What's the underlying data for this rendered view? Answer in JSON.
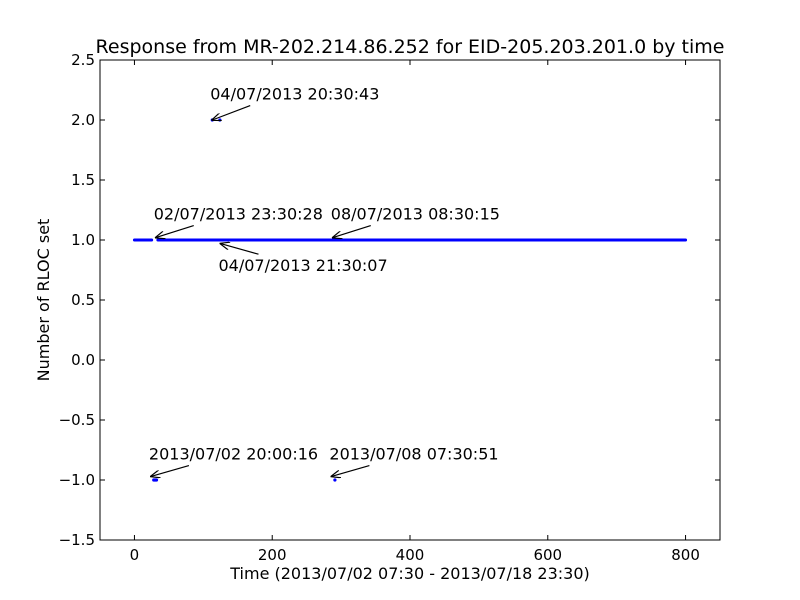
{
  "chart_data": {
    "type": "scatter",
    "title": "Response from MR-202.214.86.252 for EID-205.203.201.0 by time",
    "xlabel": "Time (2013/07/02 07:30 - 2013/07/18 23:30)",
    "ylabel": "Number of RLOC set",
    "xlim": [
      -50,
      850
    ],
    "ylim": [
      -1.5,
      2.5
    ],
    "x_ticks": [
      0,
      200,
      400,
      600,
      800
    ],
    "y_ticks": [
      -1.5,
      -1.0,
      -0.5,
      0.0,
      0.5,
      1.0,
      1.5,
      2.0,
      2.5
    ],
    "x_tick_labels": [
      "0",
      "200",
      "400",
      "600",
      "800"
    ],
    "y_tick_labels": [
      "−1.5",
      "−1.0",
      "−0.5",
      "0.0",
      "0.5",
      "1.0",
      "1.5",
      "2.0",
      "2.5"
    ],
    "grid": false,
    "marker_color": "#0000ff",
    "series": [
      {
        "segments": [
          {
            "x_start": 0,
            "x_end": 25,
            "y": 1
          },
          {
            "x_start": 34,
            "x_end": 800,
            "y": 1
          }
        ],
        "points": [
          {
            "x": 28,
            "y": -1
          },
          {
            "x": 29,
            "y": -1
          },
          {
            "x": 30,
            "y": -1
          },
          {
            "x": 31,
            "y": -1
          },
          {
            "x": 32,
            "y": -1
          },
          {
            "x": 113,
            "y": 2
          },
          {
            "x": 124,
            "y": 2
          },
          {
            "x": 291,
            "y": -1
          }
        ]
      }
    ],
    "annotations": [
      {
        "text": "04/07/2013 20:30:43",
        "point": [
          113,
          2.0
        ],
        "text_pos": [
          110,
          2.17
        ]
      },
      {
        "text": "02/07/2013 23:30:28",
        "point": [
          31,
          1.02
        ],
        "text_pos": [
          28,
          1.17
        ]
      },
      {
        "text": "08/07/2013  08:30:15",
        "point": [
          288,
          1.02
        ],
        "text_pos": [
          285,
          1.17
        ]
      },
      {
        "text": "04/07/2013  21:30:07",
        "point": [
          125,
          0.97
        ],
        "text_pos": [
          122,
          0.74
        ]
      },
      {
        "text": "2013/07/02 20:00:16",
        "point": [
          24,
          -0.97
        ],
        "text_pos": [
          21,
          -0.83
        ]
      },
      {
        "text": "2013/07/08 07:30:51",
        "point": [
          286,
          -0.97
        ],
        "text_pos": [
          283,
          -0.83
        ]
      }
    ]
  }
}
